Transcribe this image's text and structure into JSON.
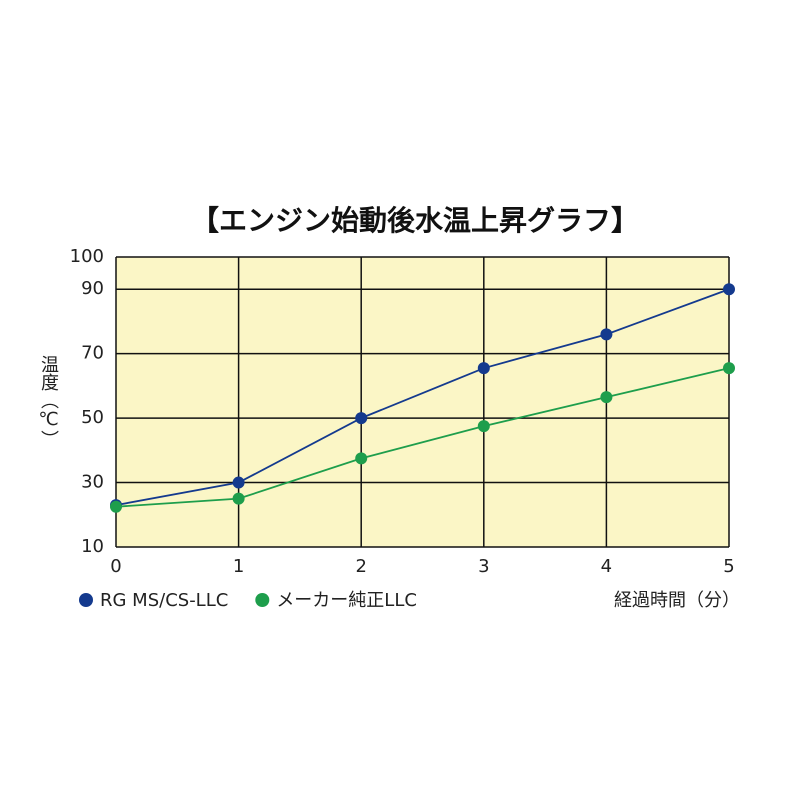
{
  "chart_data": {
    "type": "line",
    "title": "【エンジン始動後水温上昇グラフ】",
    "y_label": "温度（℃）",
    "x_label": "経過時間（分）",
    "x": [
      0,
      1,
      2,
      3,
      4,
      5
    ],
    "xlim": [
      0,
      5
    ],
    "xticks": [
      0,
      1,
      2,
      3,
      4,
      5
    ],
    "ylim": [
      10,
      100
    ],
    "yticks": [
      10,
      30,
      50,
      70,
      90,
      100
    ],
    "grid": true,
    "background": "#fbf6c6",
    "legend": "bottom-left",
    "series": [
      {
        "name": "RG MS/CS-LLC",
        "color": "#143a8e",
        "values": [
          23,
          30,
          50,
          65.5,
          76,
          90
        ]
      },
      {
        "name": "メーカー純正LLC",
        "color": "#1e9e4c",
        "values": [
          22.5,
          25,
          37.5,
          47.5,
          56.5,
          65.5
        ]
      }
    ]
  }
}
